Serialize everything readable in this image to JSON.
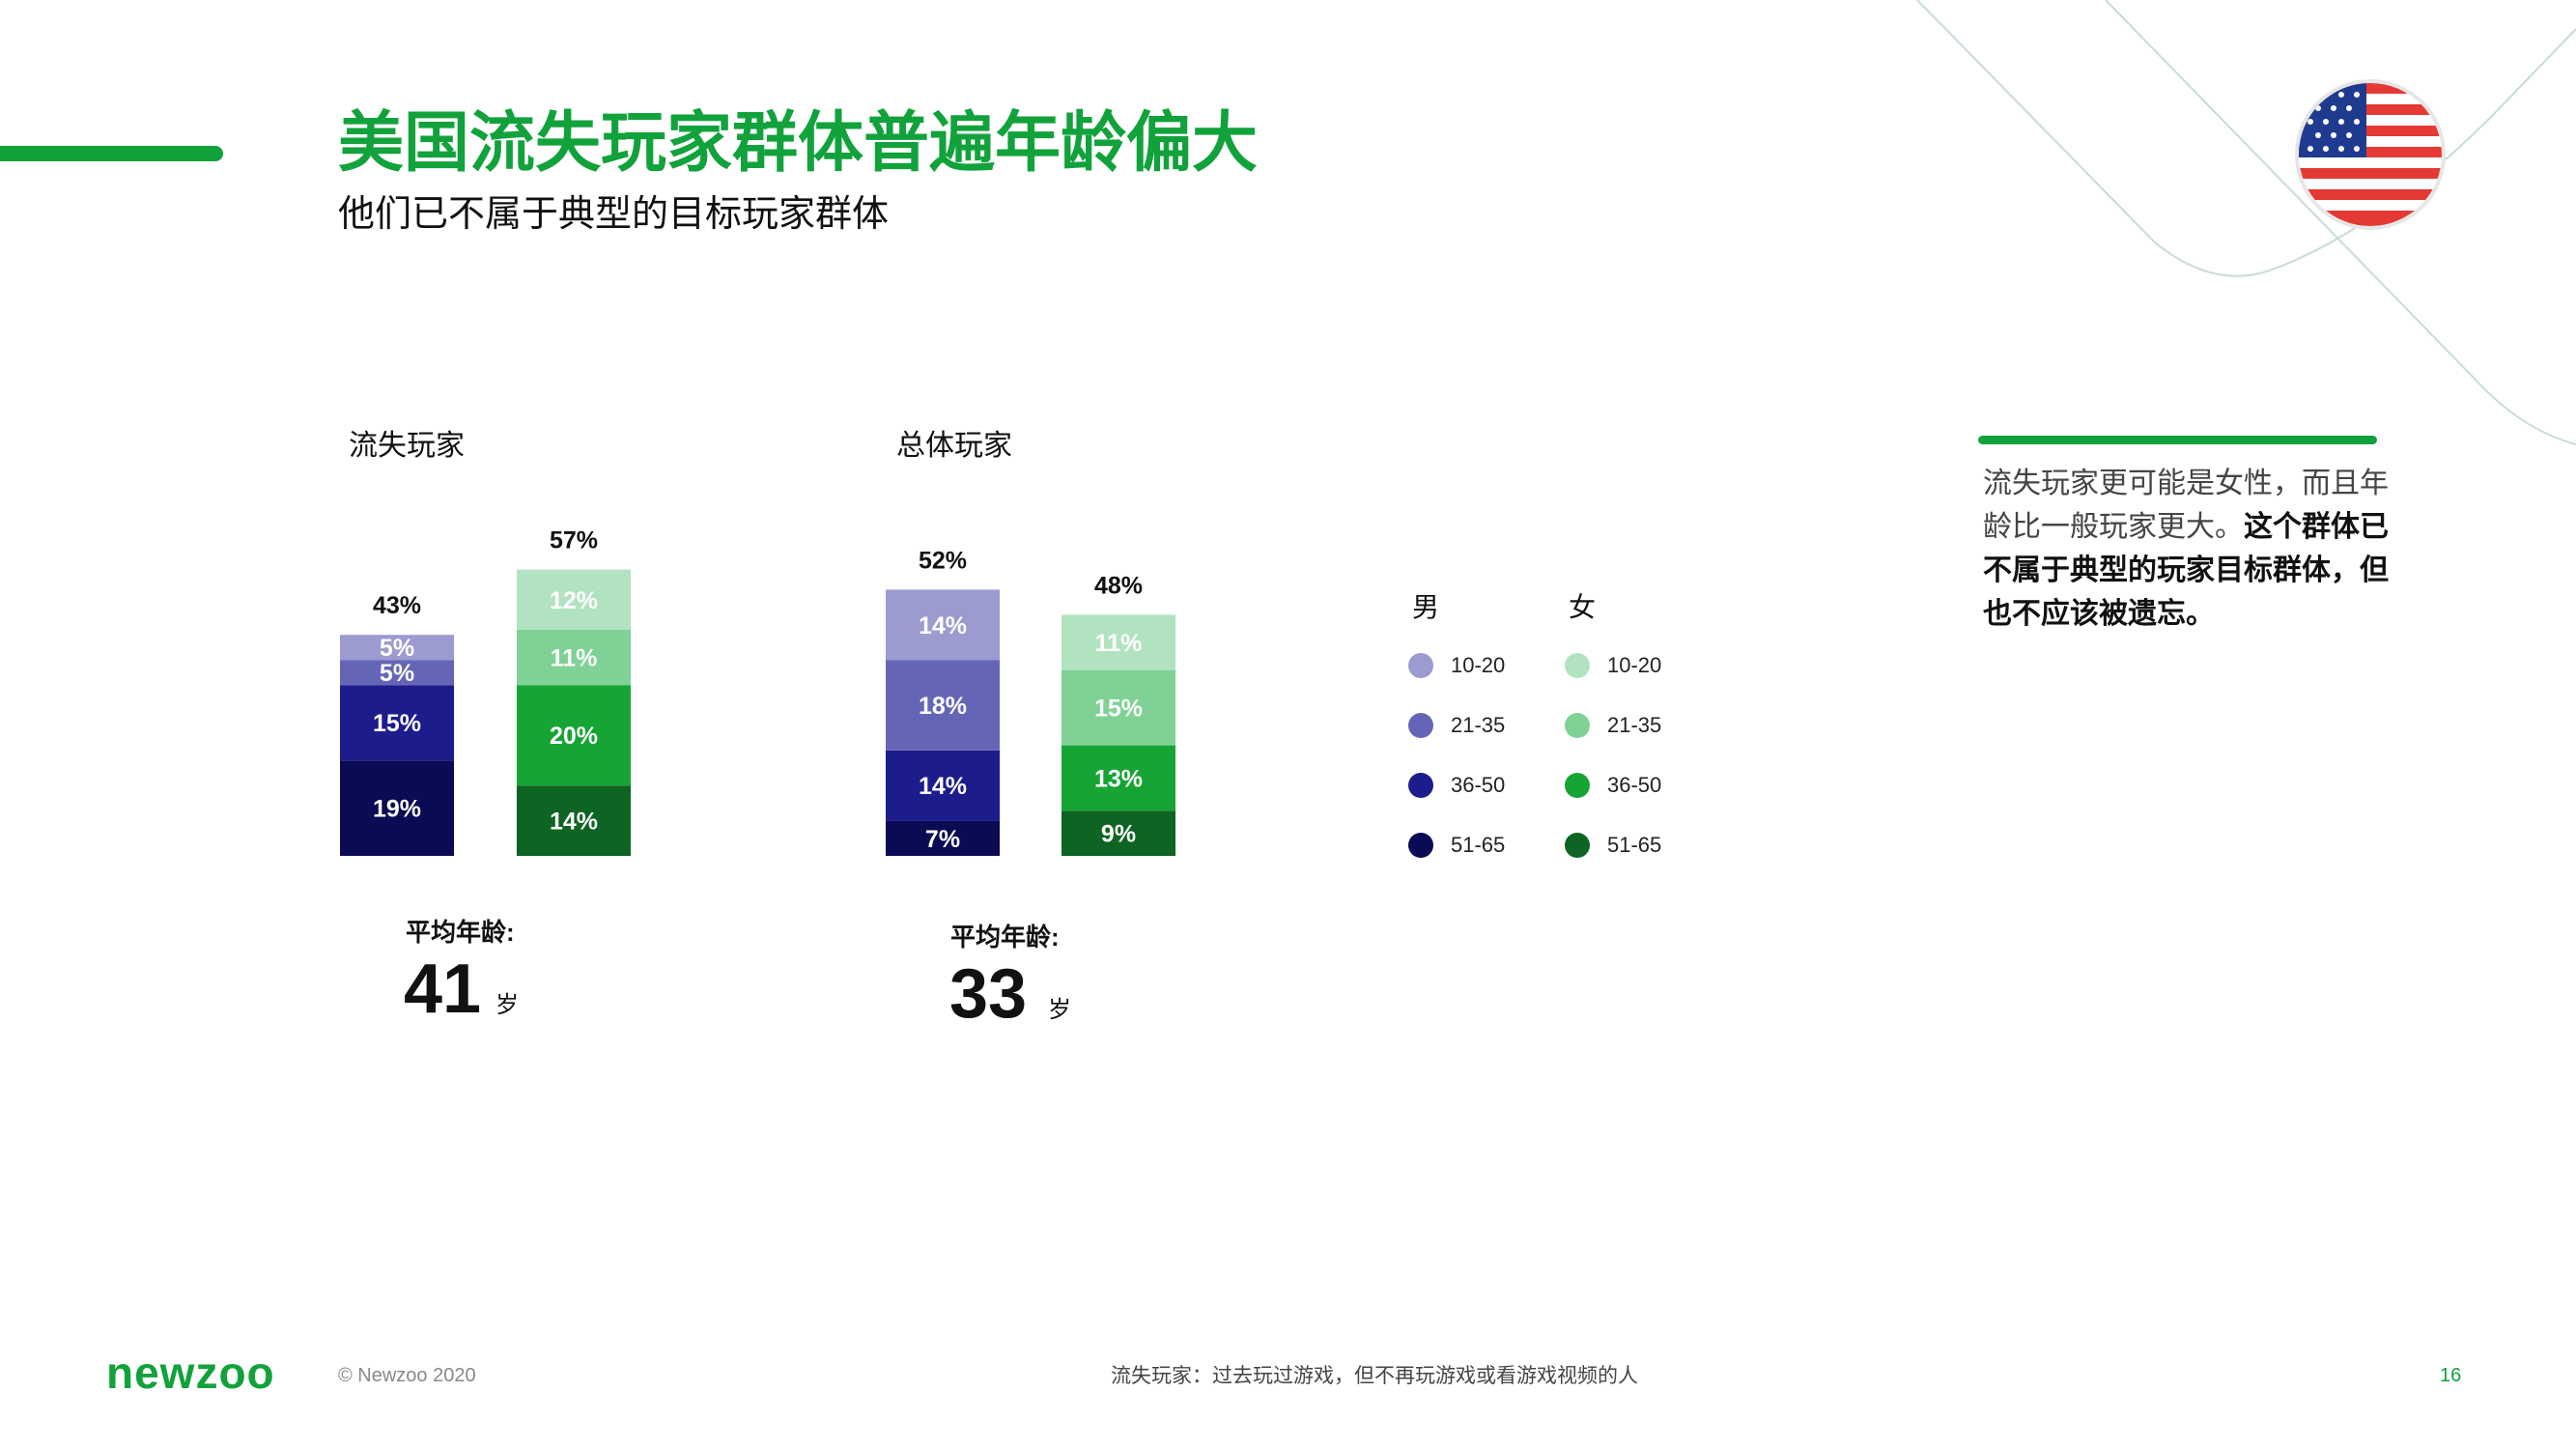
{
  "header": {
    "title": "美国流失玩家群体普遍年龄偏大",
    "subtitle": "他们已不属于典型的目标玩家群体"
  },
  "flag": {
    "icon": "us-flag-icon",
    "colors": {
      "red": "#e53935",
      "blue": "#1f3b8f",
      "white": "#ffffff"
    }
  },
  "chart_data": {
    "type": "bar",
    "stacked": true,
    "groups": [
      {
        "title": "流失玩家",
        "avg_label": "平均年龄:",
        "avg_value": "41",
        "avg_unit": "岁",
        "bars": [
          {
            "gender": "男",
            "total_label": "43%",
            "segments": [
              {
                "age": "51-65",
                "value": 19,
                "label": "19%"
              },
              {
                "age": "36-50",
                "value": 15,
                "label": "15%"
              },
              {
                "age": "21-35",
                "value": 5,
                "label": "5%"
              },
              {
                "age": "10-20",
                "value": 5,
                "label": "5%"
              }
            ]
          },
          {
            "gender": "女",
            "total_label": "57%",
            "segments": [
              {
                "age": "51-65",
                "value": 14,
                "label": "14%"
              },
              {
                "age": "36-50",
                "value": 20,
                "label": "20%"
              },
              {
                "age": "21-35",
                "value": 11,
                "label": "11%"
              },
              {
                "age": "10-20",
                "value": 12,
                "label": "12%"
              }
            ]
          }
        ]
      },
      {
        "title": "总体玩家",
        "avg_label": "平均年龄:",
        "avg_value": "33",
        "avg_unit": "岁",
        "bars": [
          {
            "gender": "男",
            "total_label": "52%",
            "segments": [
              {
                "age": "51-65",
                "value": 7,
                "label": "7%"
              },
              {
                "age": "36-50",
                "value": 14,
                "label": "14%"
              },
              {
                "age": "21-35",
                "value": 18,
                "label": "18%"
              },
              {
                "age": "10-20",
                "value": 14,
                "label": "14%"
              }
            ]
          },
          {
            "gender": "女",
            "total_label": "48%",
            "segments": [
              {
                "age": "51-65",
                "value": 9,
                "label": "9%"
              },
              {
                "age": "36-50",
                "value": 13,
                "label": "13%"
              },
              {
                "age": "21-35",
                "value": 15,
                "label": "15%"
              },
              {
                "age": "10-20",
                "value": 11,
                "label": "11%"
              }
            ]
          }
        ]
      }
    ],
    "legend": {
      "male": {
        "label": "男",
        "items": [
          {
            "age": "10-20",
            "color": "#9b9bcf"
          },
          {
            "age": "21-35",
            "color": "#6565b8"
          },
          {
            "age": "36-50",
            "color": "#1c1c8c"
          },
          {
            "age": "51-65",
            "color": "#0a0a55"
          }
        ]
      },
      "female": {
        "label": "女",
        "items": [
          {
            "age": "10-20",
            "color": "#b2e3c0"
          },
          {
            "age": "21-35",
            "color": "#7fd195"
          },
          {
            "age": "36-50",
            "color": "#16a534"
          },
          {
            "age": "51-65",
            "color": "#0e6422"
          }
        ]
      }
    }
  },
  "note": {
    "text_plain": "流失玩家更可能是女性，而且年龄比一般玩家更大。",
    "text_bold": "这个群体已不属于典型的玩家目标群体，但也不应该被遗忘。"
  },
  "footer": {
    "logo": "newzoo",
    "copyright": "© Newzoo 2020",
    "footnote": "流失玩家：过去玩过游戏，但不再玩游戏或看游戏视频的人",
    "page_number": "16"
  }
}
